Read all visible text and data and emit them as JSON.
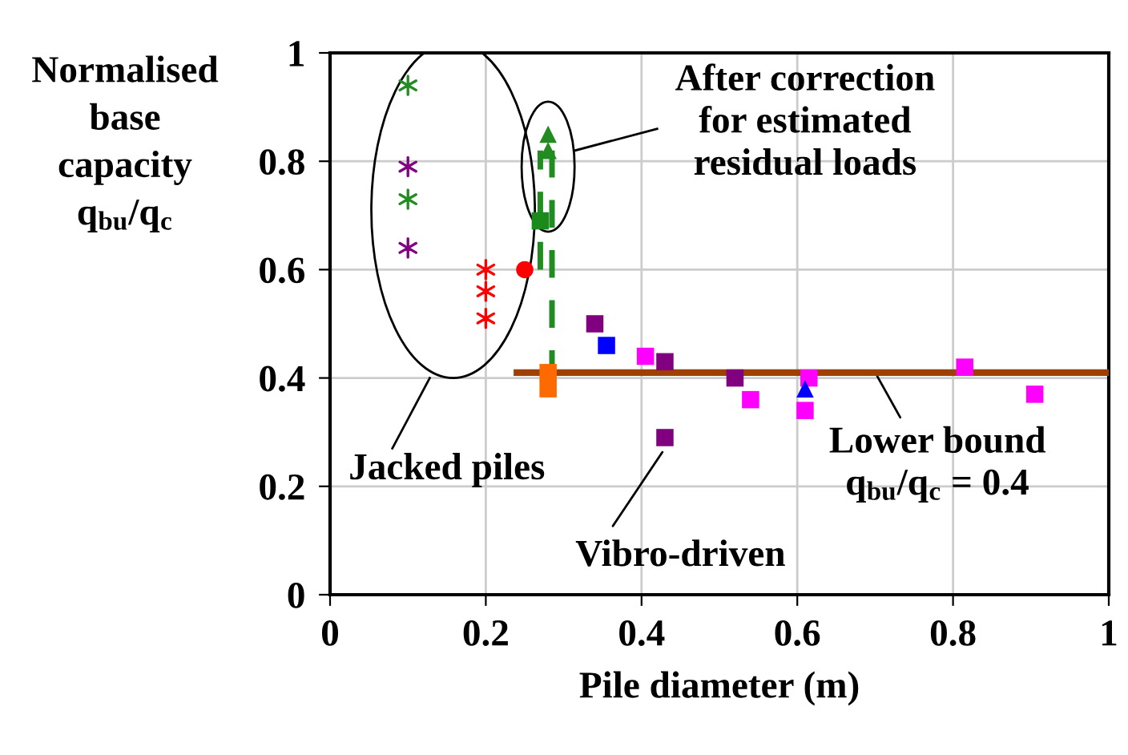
{
  "chart_data": {
    "type": "scatter",
    "xlabel": "Pile diameter (m)",
    "ylabel": "Normalised\nbase\ncapacity\nq$_{bu}$/q$_{c}$",
    "xlim": [
      0,
      1
    ],
    "ylim": [
      0,
      1
    ],
    "xticks": [
      0,
      0.2,
      0.4,
      0.6,
      0.8,
      1
    ],
    "yticks": [
      0,
      0.2,
      0.4,
      0.6,
      0.8,
      1
    ],
    "grid": true,
    "legend": false,
    "series": [
      {
        "marker": "cross",
        "color": "#228b22",
        "x": [
          0.1,
          0.1
        ],
        "values": [
          0.94,
          0.73
        ]
      },
      {
        "marker": "cross",
        "color": "#800080",
        "x": [
          0.1,
          0.1
        ],
        "values": [
          0.79,
          0.64
        ]
      },
      {
        "marker": "cross",
        "color": "#ff0000",
        "x": [
          0.2,
          0.2,
          0.2
        ],
        "values": [
          0.6,
          0.56,
          0.51
        ]
      },
      {
        "marker": "circle",
        "color": "#ff0000",
        "x": [
          0.25
        ],
        "values": [
          0.6
        ]
      },
      {
        "type": "line",
        "line_style": "dashed",
        "color": "#228b22",
        "x": [
          0.27,
          0.27
        ],
        "values": [
          0.6,
          0.82
        ]
      },
      {
        "type": "line",
        "line_style": "dashed",
        "color": "#228b22",
        "x": [
          0.285,
          0.285
        ],
        "values": [
          0.4,
          0.82
        ]
      },
      {
        "marker": "square",
        "color": "#1a8a1a",
        "x": [
          0.27
        ],
        "values": [
          0.69
        ]
      },
      {
        "marker": "triangle",
        "color": "#228b22",
        "x": [
          0.28,
          0.28
        ],
        "values": [
          0.85,
          0.82
        ]
      },
      {
        "type": "line",
        "line_style": "solid",
        "color": "#a04000",
        "x": [
          0.24,
          1
        ],
        "values": [
          0.41,
          0.41
        ]
      },
      {
        "marker": "square",
        "color": "#ff6a00",
        "x": [
          0.28,
          0.28
        ],
        "values": [
          0.41,
          0.38
        ]
      },
      {
        "marker": "square",
        "color": "#800080",
        "x": [
          0.34,
          0.43,
          0.52,
          0.43
        ],
        "values": [
          0.5,
          0.43,
          0.4,
          0.29
        ]
      },
      {
        "marker": "square",
        "color": "#0000ff",
        "x": [
          0.355
        ],
        "values": [
          0.46
        ]
      },
      {
        "marker": "square",
        "color": "#ff00ff",
        "x": [
          0.405,
          0.54,
          0.615,
          0.61,
          0.815,
          0.905
        ],
        "values": [
          0.44,
          0.36,
          0.4,
          0.34,
          0.42,
          0.37
        ]
      },
      {
        "marker": "triangle",
        "color": "#0000ff",
        "x": [
          0.61
        ],
        "values": [
          0.38
        ]
      }
    ],
    "annotations": [
      "After correction\nfor estimated\nresidual loads",
      "Jacked piles",
      {
        "text": "Vibro-driven",
        "x": 0.43,
        "y": 0.29
      },
      {
        "text": "Lower bound\nq$_{bu}$/q$_{c}$ = 0.4",
        "x": 0.7,
        "y": 0.41
      }
    ]
  }
}
